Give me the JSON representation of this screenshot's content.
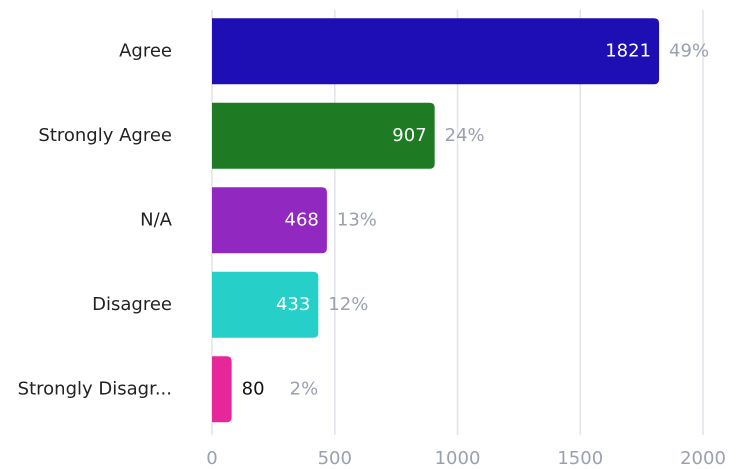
{
  "chart_data": {
    "type": "hbar",
    "categories": [
      "Agree",
      "Strongly Agree",
      "N/A",
      "Disagree",
      "Strongly Disagr..."
    ],
    "values": [
      1821,
      907,
      468,
      433,
      80
    ],
    "shares": [
      49,
      24,
      13,
      12,
      2
    ],
    "share_labels": [
      "49%",
      "24%",
      "13%",
      "12%",
      "2%"
    ],
    "colors": [
      "#1d0fb4",
      "#1e7b24",
      "#9128c0",
      "#27cfc9",
      "#e6279a"
    ],
    "xlim": [
      0,
      2000
    ],
    "xticks": [
      0,
      500,
      1000,
      1500,
      2000
    ],
    "grid": true
  }
}
